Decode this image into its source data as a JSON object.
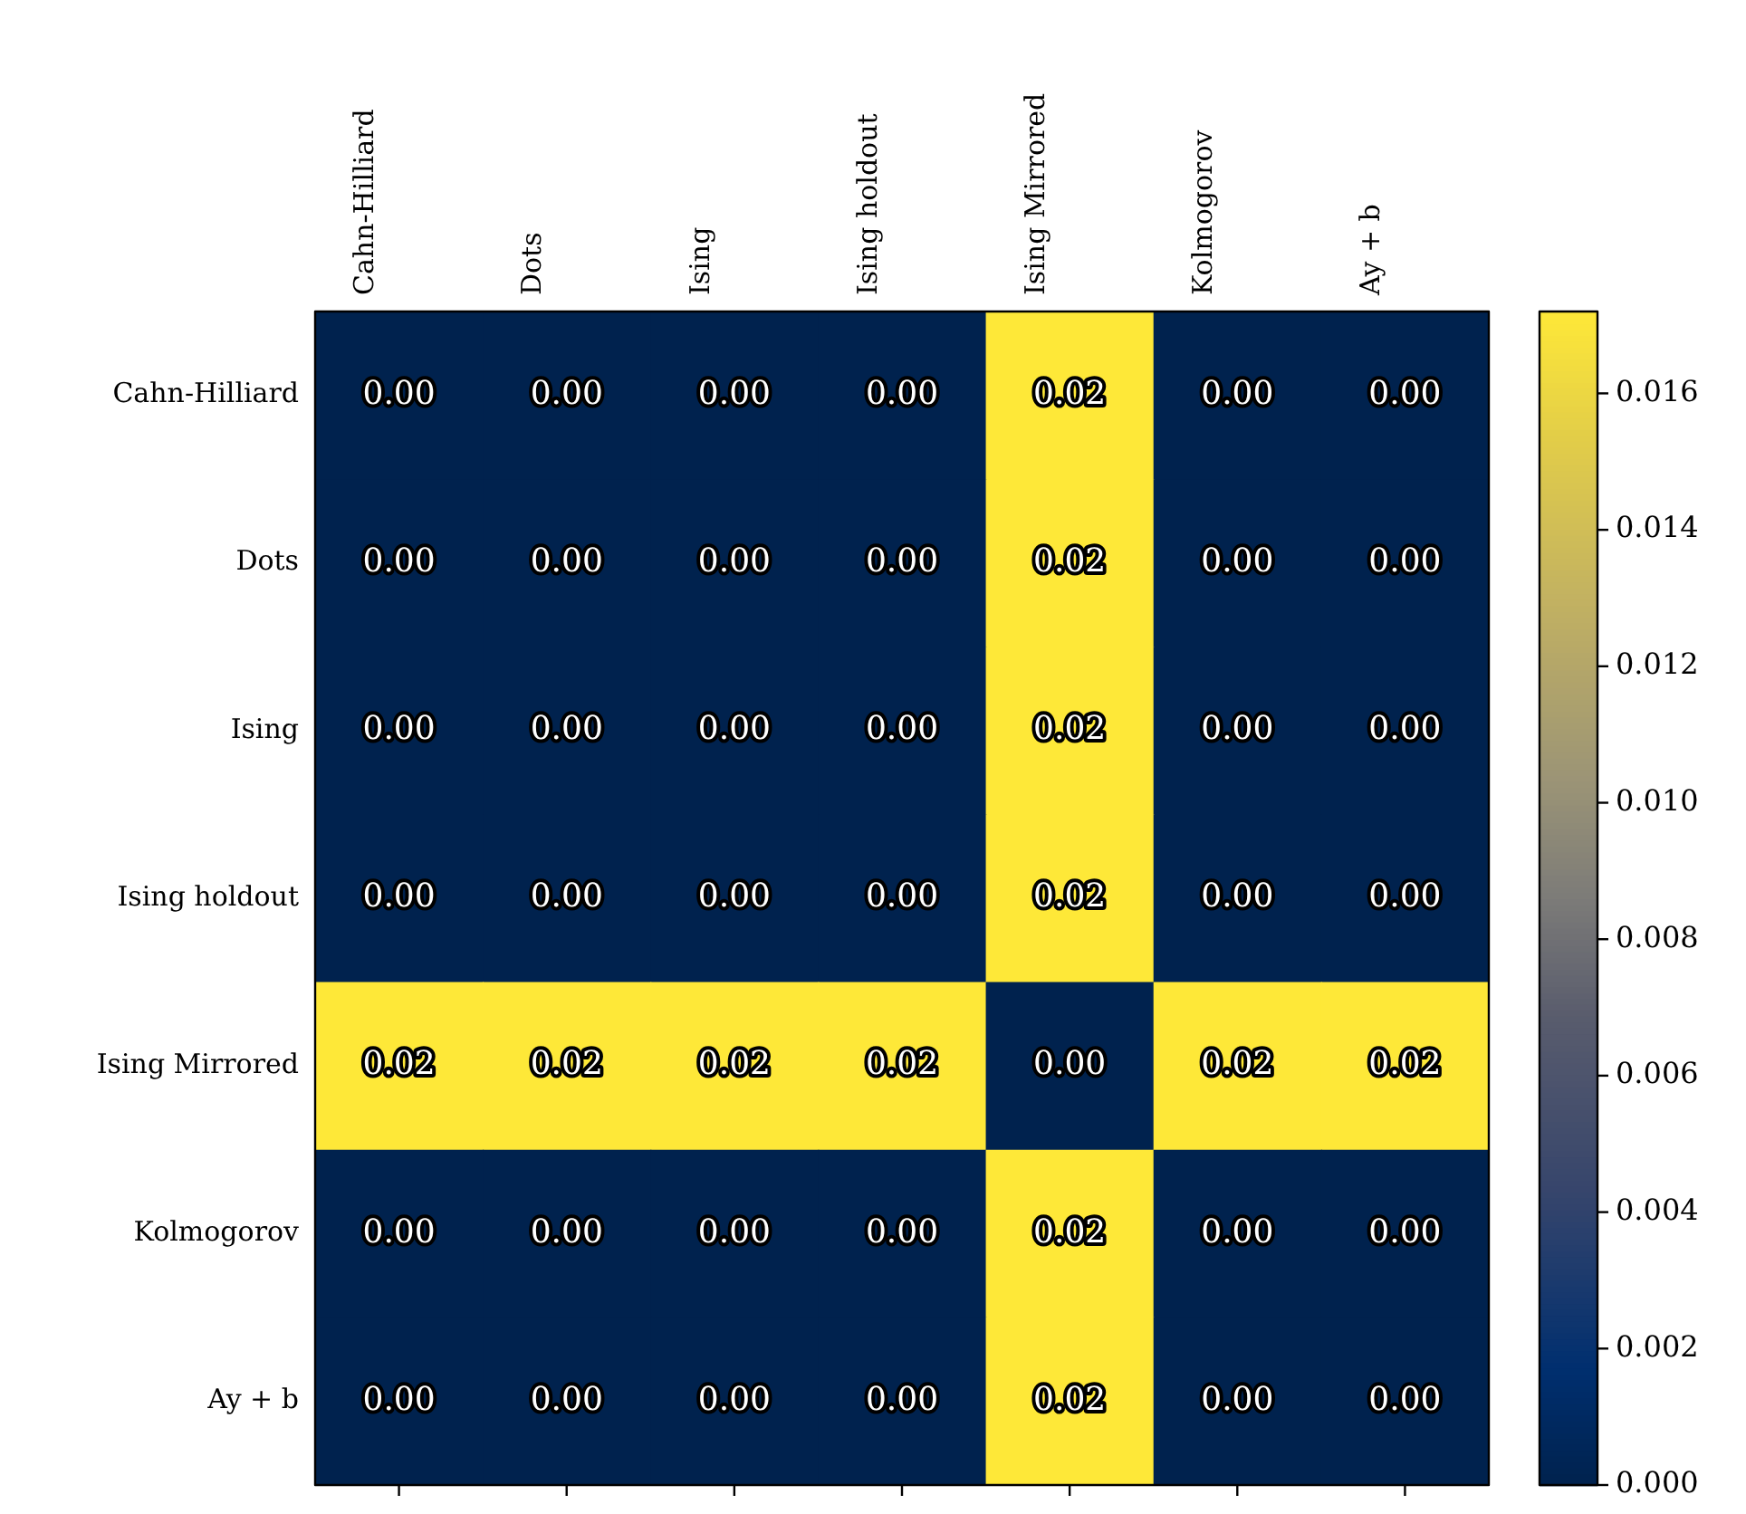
{
  "chart_data": {
    "type": "heatmap",
    "categories": [
      "Cahn-Hilliard",
      "Dots",
      "Ising",
      "Ising holdout",
      "Ising Mirrored",
      "Kolmogorov",
      "Ay + b"
    ],
    "y_categories": [
      "Cahn-Hilliard",
      "Dots",
      "Ising",
      "Ising holdout",
      "Ising Mirrored",
      "Kolmogorov",
      "Ay + b"
    ],
    "cells": [
      [
        0,
        0,
        0,
        0,
        0.0172,
        0,
        0
      ],
      [
        0,
        0,
        0,
        0,
        0.0172,
        0,
        0
      ],
      [
        0,
        0,
        0,
        0,
        0.0172,
        0,
        0
      ],
      [
        0,
        0,
        0,
        0,
        0.0172,
        0,
        0
      ],
      [
        0.0172,
        0.0172,
        0.0172,
        0.0172,
        0,
        0.0172,
        0.0172
      ],
      [
        0,
        0,
        0,
        0,
        0.0172,
        0,
        0
      ],
      [
        0,
        0,
        0,
        0,
        0.0172,
        0,
        0
      ]
    ],
    "cell_labels": [
      [
        "0.00",
        "0.00",
        "0.00",
        "0.00",
        "0.02",
        "0.00",
        "0.00"
      ],
      [
        "0.00",
        "0.00",
        "0.00",
        "0.00",
        "0.02",
        "0.00",
        "0.00"
      ],
      [
        "0.00",
        "0.00",
        "0.00",
        "0.00",
        "0.02",
        "0.00",
        "0.00"
      ],
      [
        "0.00",
        "0.00",
        "0.00",
        "0.00",
        "0.02",
        "0.00",
        "0.00"
      ],
      [
        "0.02",
        "0.02",
        "0.02",
        "0.02",
        "0.00",
        "0.02",
        "0.02"
      ],
      [
        "0.00",
        "0.00",
        "0.00",
        "0.00",
        "0.02",
        "0.00",
        "0.00"
      ],
      [
        "0.00",
        "0.00",
        "0.00",
        "0.00",
        "0.02",
        "0.00",
        "0.00"
      ]
    ],
    "clim": [
      0,
      0.0172
    ],
    "cticks": [
      {
        "value": 0,
        "label": "0.000"
      },
      {
        "value": 0.002,
        "label": "0.002"
      },
      {
        "value": 0.004,
        "label": "0.004"
      },
      {
        "value": 0.006,
        "label": "0.006"
      },
      {
        "value": 0.008,
        "label": "0.008"
      },
      {
        "value": 0.01,
        "label": "0.010"
      },
      {
        "value": 0.012,
        "label": "0.012"
      },
      {
        "value": 0.014,
        "label": "0.014"
      },
      {
        "value": 0.016,
        "label": "0.016"
      }
    ],
    "grid": false,
    "legend": false
  }
}
